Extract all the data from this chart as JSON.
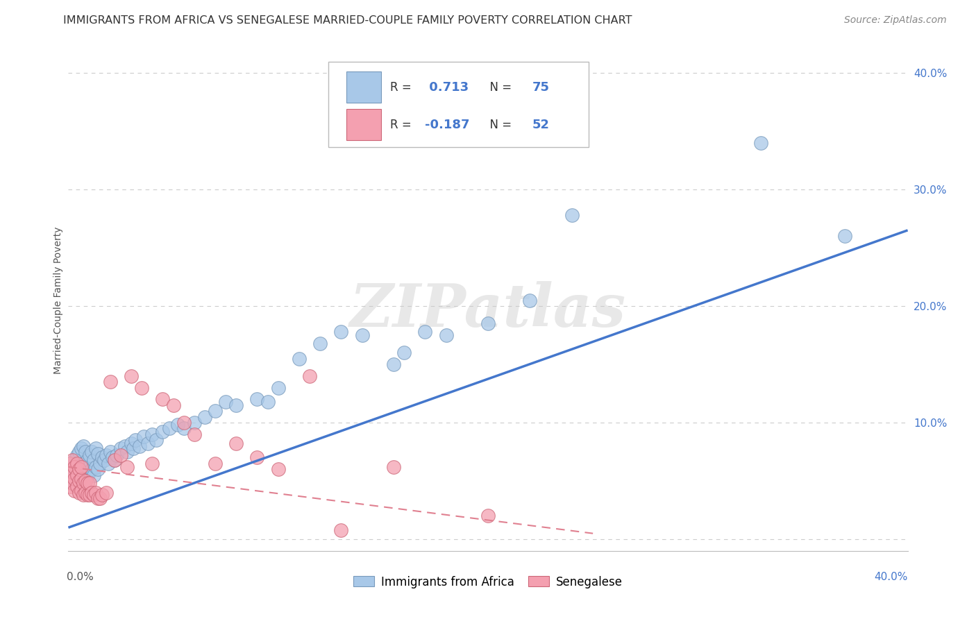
{
  "title": "IMMIGRANTS FROM AFRICA VS SENEGALESE MARRIED-COUPLE FAMILY POVERTY CORRELATION CHART",
  "source": "Source: ZipAtlas.com",
  "ylabel": "Married-Couple Family Poverty",
  "xlim": [
    0.0,
    0.4
  ],
  "ylim": [
    -0.01,
    0.42
  ],
  "watermark": "ZIPatlas",
  "blue_color": "#A8C8E8",
  "pink_color": "#F4A0B0",
  "blue_line_color": "#4477CC",
  "pink_line_color": "#E08090",
  "blue_edge": "#7799BB",
  "pink_edge": "#CC6677",
  "background_color": "#FFFFFF",
  "grid_color": "#CCCCCC",
  "blue_scatter_x": [
    0.001,
    0.002,
    0.003,
    0.003,
    0.004,
    0.004,
    0.005,
    0.005,
    0.005,
    0.006,
    0.006,
    0.006,
    0.007,
    0.007,
    0.007,
    0.008,
    0.008,
    0.008,
    0.009,
    0.009,
    0.01,
    0.01,
    0.011,
    0.011,
    0.012,
    0.012,
    0.013,
    0.013,
    0.014,
    0.014,
    0.015,
    0.016,
    0.017,
    0.018,
    0.019,
    0.02,
    0.021,
    0.022,
    0.023,
    0.025,
    0.027,
    0.028,
    0.03,
    0.031,
    0.032,
    0.034,
    0.036,
    0.038,
    0.04,
    0.042,
    0.045,
    0.048,
    0.052,
    0.055,
    0.06,
    0.065,
    0.07,
    0.075,
    0.08,
    0.09,
    0.095,
    0.1,
    0.11,
    0.12,
    0.13,
    0.14,
    0.155,
    0.16,
    0.17,
    0.18,
    0.2,
    0.22,
    0.24,
    0.33,
    0.37
  ],
  "blue_scatter_y": [
    0.05,
    0.06,
    0.055,
    0.068,
    0.058,
    0.072,
    0.048,
    0.06,
    0.075,
    0.052,
    0.063,
    0.078,
    0.055,
    0.065,
    0.08,
    0.05,
    0.062,
    0.075,
    0.055,
    0.068,
    0.058,
    0.072,
    0.06,
    0.075,
    0.055,
    0.068,
    0.062,
    0.078,
    0.06,
    0.073,
    0.065,
    0.07,
    0.068,
    0.072,
    0.065,
    0.075,
    0.07,
    0.068,
    0.072,
    0.078,
    0.08,
    0.075,
    0.082,
    0.078,
    0.085,
    0.08,
    0.088,
    0.082,
    0.09,
    0.085,
    0.092,
    0.095,
    0.098,
    0.095,
    0.1,
    0.105,
    0.11,
    0.118,
    0.115,
    0.12,
    0.118,
    0.13,
    0.155,
    0.168,
    0.178,
    0.175,
    0.15,
    0.16,
    0.178,
    0.175,
    0.185,
    0.205,
    0.278,
    0.34,
    0.26
  ],
  "pink_scatter_x": [
    0.001,
    0.001,
    0.001,
    0.002,
    0.002,
    0.002,
    0.003,
    0.003,
    0.003,
    0.004,
    0.004,
    0.004,
    0.005,
    0.005,
    0.005,
    0.006,
    0.006,
    0.006,
    0.007,
    0.007,
    0.008,
    0.008,
    0.009,
    0.009,
    0.01,
    0.01,
    0.011,
    0.012,
    0.013,
    0.014,
    0.015,
    0.016,
    0.018,
    0.02,
    0.022,
    0.025,
    0.028,
    0.03,
    0.035,
    0.04,
    0.045,
    0.05,
    0.055,
    0.06,
    0.07,
    0.08,
    0.09,
    0.1,
    0.115,
    0.13,
    0.155,
    0.2
  ],
  "pink_scatter_y": [
    0.045,
    0.055,
    0.065,
    0.048,
    0.058,
    0.068,
    0.042,
    0.052,
    0.062,
    0.045,
    0.055,
    0.065,
    0.04,
    0.05,
    0.06,
    0.042,
    0.052,
    0.062,
    0.038,
    0.048,
    0.04,
    0.05,
    0.038,
    0.048,
    0.038,
    0.048,
    0.04,
    0.038,
    0.04,
    0.035,
    0.035,
    0.038,
    0.04,
    0.135,
    0.068,
    0.072,
    0.062,
    0.14,
    0.13,
    0.065,
    0.12,
    0.115,
    0.1,
    0.09,
    0.065,
    0.082,
    0.07,
    0.06,
    0.14,
    0.008,
    0.062,
    0.02
  ],
  "blue_line_x": [
    0.0,
    0.4
  ],
  "blue_line_y": [
    0.01,
    0.265
  ],
  "pink_line_x": [
    0.0,
    0.25
  ],
  "pink_line_y": [
    0.062,
    0.005
  ]
}
